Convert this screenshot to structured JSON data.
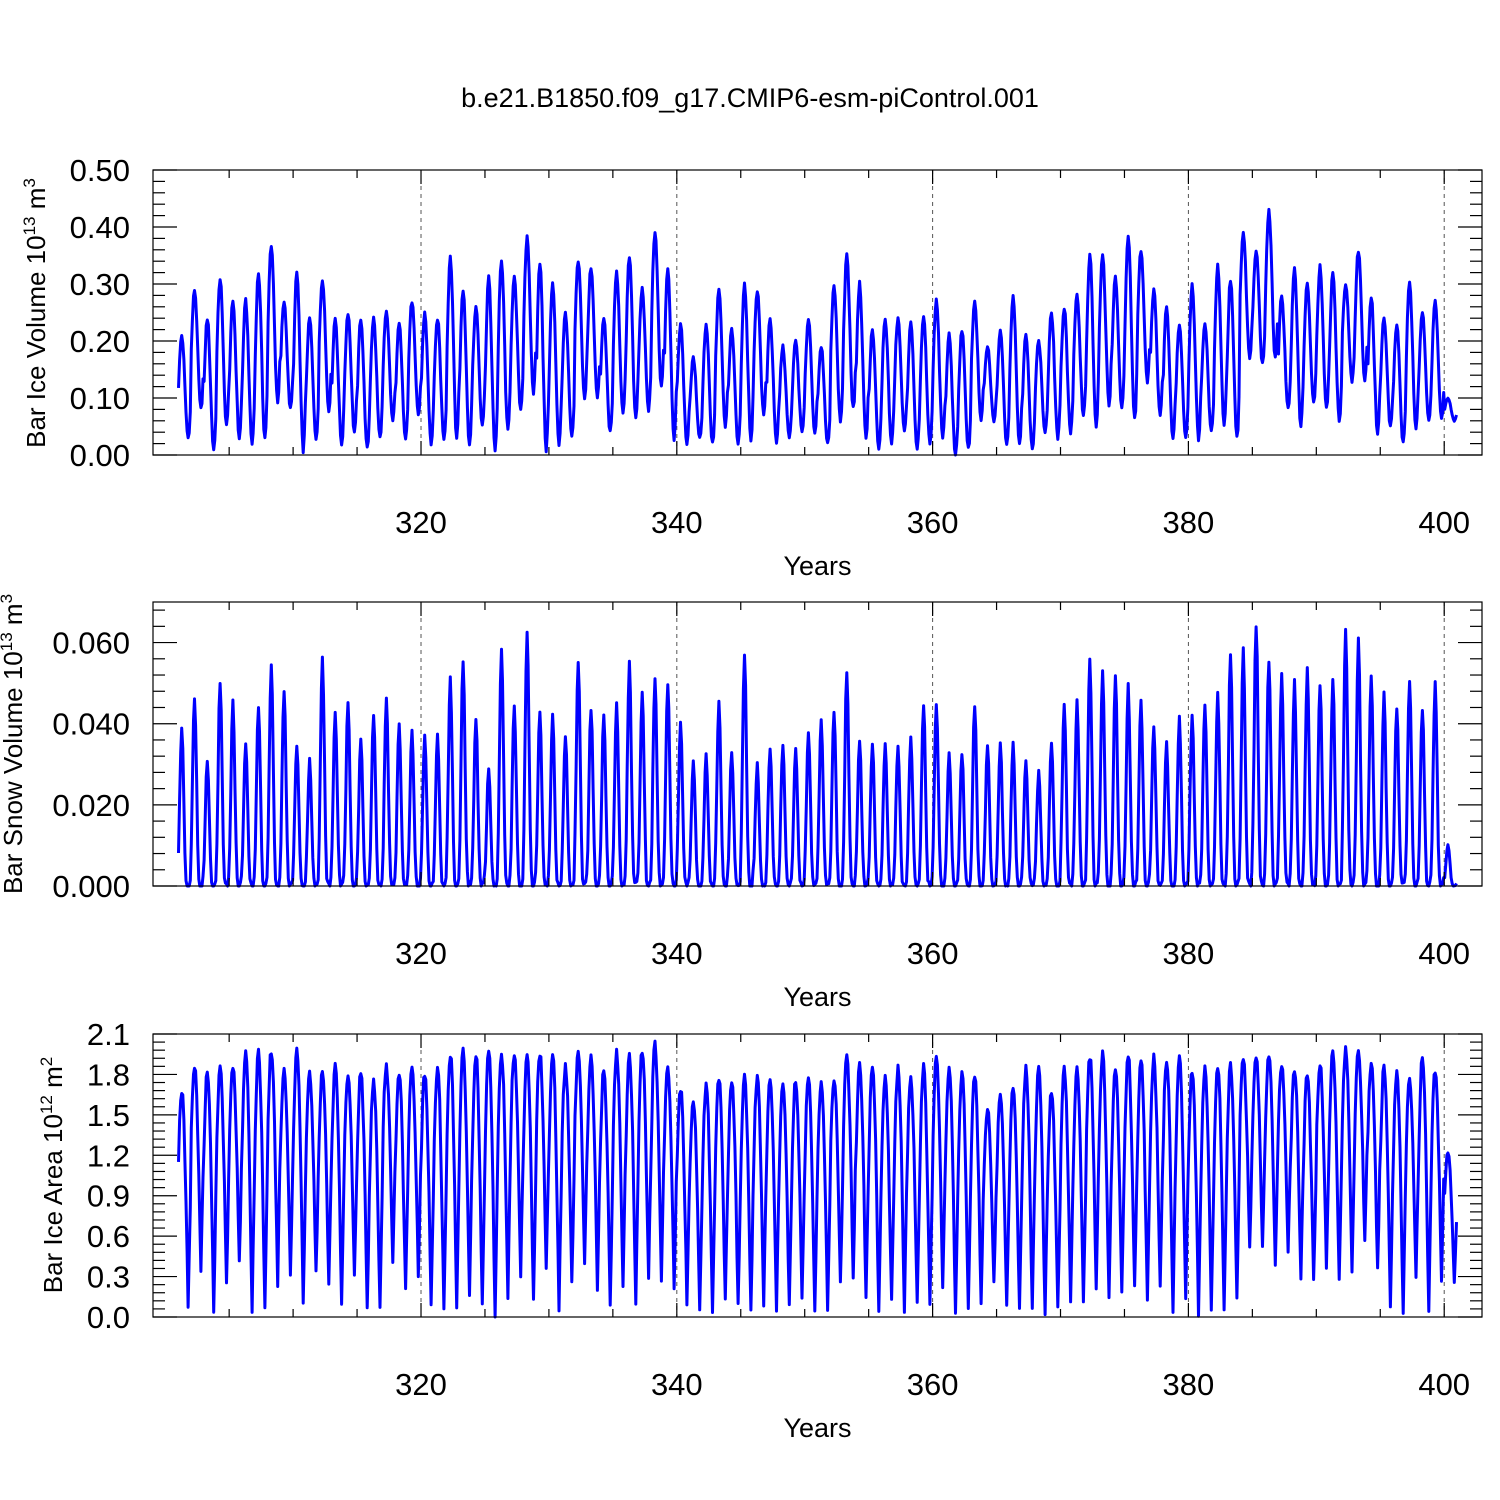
{
  "figure": {
    "title": "b.e21.B1850.f09_g17.CMIP6-esm-piControl.001"
  },
  "chart_data": [
    {
      "type": "line",
      "id": "ice-volume",
      "ylabel": {
        "main": "Bar Ice Volume 10",
        "exp": "13",
        "unit": " m",
        "unit_exp": "3"
      },
      "xlabel": "Years",
      "xlim": [
        301,
        400
      ],
      "ylim": [
        0.0,
        0.5
      ],
      "xticks": [
        320,
        340,
        360,
        380,
        400
      ],
      "xtick_labels": [
        "320",
        "340",
        "360",
        "380",
        "400"
      ],
      "yticks": [
        0.0,
        0.1,
        0.2,
        0.3,
        0.4,
        0.5
      ],
      "ytick_labels": [
        "0.00",
        "0.10",
        "0.20",
        "0.30",
        "0.40",
        "0.50"
      ],
      "grid_x": true,
      "color": "#0000ff",
      "series": [
        {
          "name": "Bar Ice Volume",
          "annual_max": [
            0.21,
            0.29,
            0.24,
            0.31,
            0.27,
            0.27,
            0.32,
            0.37,
            0.27,
            0.32,
            0.24,
            0.31,
            0.24,
            0.25,
            0.24,
            0.24,
            0.25,
            0.23,
            0.27,
            0.25,
            0.24,
            0.35,
            0.29,
            0.26,
            0.31,
            0.34,
            0.31,
            0.38,
            0.34,
            0.3,
            0.25,
            0.34,
            0.33,
            0.24,
            0.32,
            0.35,
            0.29,
            0.39,
            0.33,
            0.23,
            0.17,
            0.23,
            0.29,
            0.22,
            0.3,
            0.29,
            0.24,
            0.19,
            0.2,
            0.24,
            0.19,
            0.3,
            0.35,
            0.3,
            0.22,
            0.24,
            0.24,
            0.23,
            0.24,
            0.27,
            0.21,
            0.22,
            0.27,
            0.19,
            0.22,
            0.28,
            0.21,
            0.2,
            0.25,
            0.26,
            0.28,
            0.35,
            0.35,
            0.31,
            0.39,
            0.36,
            0.29,
            0.26,
            0.23,
            0.3,
            0.23,
            0.33,
            0.31,
            0.39,
            0.36,
            0.43,
            0.28,
            0.33,
            0.3,
            0.33,
            0.32,
            0.3,
            0.36,
            0.28,
            0.24,
            0.23,
            0.3,
            0.25,
            0.27,
            0.1
          ],
          "annual_min": [
            0.03,
            0.08,
            0.01,
            0.05,
            0.03,
            0.02,
            0.03,
            0.09,
            0.08,
            0.01,
            0.03,
            0.08,
            0.02,
            0.04,
            0.01,
            0.03,
            0.06,
            0.03,
            0.07,
            0.02,
            0.03,
            0.03,
            0.02,
            0.05,
            0.01,
            0.04,
            0.08,
            0.11,
            0.01,
            0.02,
            0.03,
            0.1,
            0.1,
            0.04,
            0.07,
            0.06,
            0.08,
            0.12,
            0.03,
            0.02,
            0.03,
            0.02,
            0.05,
            0.02,
            0.03,
            0.07,
            0.02,
            0.03,
            0.04,
            0.04,
            0.02,
            0.06,
            0.08,
            0.03,
            0.01,
            0.02,
            0.04,
            0.01,
            0.02,
            0.03,
            0.0,
            0.01,
            0.06,
            0.06,
            0.02,
            0.02,
            0.01,
            0.04,
            0.03,
            0.04,
            0.07,
            0.05,
            0.09,
            0.08,
            0.06,
            0.13,
            0.07,
            0.03,
            0.03,
            0.03,
            0.04,
            0.05,
            0.03,
            0.17,
            0.16,
            0.17,
            0.08,
            0.05,
            0.09,
            0.08,
            0.06,
            0.13,
            0.13,
            0.04,
            0.05,
            0.02,
            0.05,
            0.06,
            0.06,
            0.06
          ]
        }
      ]
    },
    {
      "type": "line",
      "id": "snow-volume",
      "ylabel": {
        "main": "Bar Snow Volume 10",
        "exp": "13",
        "unit": " m",
        "unit_exp": "3"
      },
      "xlabel": "Years",
      "xlim": [
        301,
        400
      ],
      "ylim": [
        0.0,
        0.07
      ],
      "xticks": [
        320,
        340,
        360,
        380,
        400
      ],
      "xtick_labels": [
        "320",
        "340",
        "360",
        "380",
        "400"
      ],
      "yticks": [
        0.0,
        0.02,
        0.04,
        0.06
      ],
      "ytick_labels": [
        "0.000",
        "0.020",
        "0.040",
        "0.060"
      ],
      "grid_x": true,
      "color": "#0000ff",
      "series": [
        {
          "name": "Bar Snow Volume",
          "annual_max": [
            0.039,
            0.047,
            0.031,
            0.05,
            0.045,
            0.035,
            0.044,
            0.054,
            0.048,
            0.035,
            0.031,
            0.056,
            0.043,
            0.046,
            0.036,
            0.042,
            0.046,
            0.04,
            0.038,
            0.037,
            0.037,
            0.051,
            0.056,
            0.041,
            0.029,
            0.058,
            0.045,
            0.062,
            0.043,
            0.042,
            0.037,
            0.056,
            0.044,
            0.042,
            0.045,
            0.055,
            0.048,
            0.051,
            0.05,
            0.04,
            0.031,
            0.032,
            0.045,
            0.033,
            0.057,
            0.03,
            0.034,
            0.035,
            0.034,
            0.038,
            0.041,
            0.043,
            0.053,
            0.036,
            0.035,
            0.035,
            0.035,
            0.037,
            0.045,
            0.045,
            0.033,
            0.033,
            0.045,
            0.035,
            0.035,
            0.035,
            0.031,
            0.028,
            0.035,
            0.045,
            0.046,
            0.055,
            0.053,
            0.052,
            0.049,
            0.045,
            0.04,
            0.035,
            0.041,
            0.042,
            0.045,
            0.047,
            0.057,
            0.058,
            0.065,
            0.056,
            0.052,
            0.05,
            0.053,
            0.05,
            0.051,
            0.062,
            0.06,
            0.052,
            0.047,
            0.044,
            0.05,
            0.044,
            0.05,
            0.01
          ],
          "annual_min": [
            0.0,
            0.0,
            0.0,
            0.0,
            0.0,
            0.0,
            0.0,
            0.0,
            0.0,
            0.0,
            0.0,
            0.0,
            0.0,
            0.0,
            0.0,
            0.0,
            0.0,
            0.0,
            0.0,
            0.0,
            0.0,
            0.0,
            0.0,
            0.0,
            0.0,
            0.0,
            0.0,
            0.0,
            0.0,
            0.0,
            0.0,
            0.0,
            0.0,
            0.0,
            0.0,
            0.0,
            0.0,
            0.0,
            0.0,
            0.0,
            0.0,
            0.0,
            0.0,
            0.0,
            0.0,
            0.0,
            0.0,
            0.0,
            0.0,
            0.0,
            0.0,
            0.0,
            0.0,
            0.0,
            0.0,
            0.0,
            0.0,
            0.0,
            0.0,
            0.0,
            0.0,
            0.0,
            0.0,
            0.0,
            0.0,
            0.0,
            0.0,
            0.0,
            0.0,
            0.0,
            0.0,
            0.0,
            0.0,
            0.0,
            0.0,
            0.0,
            0.0,
            0.0,
            0.0,
            0.0,
            0.0,
            0.0,
            0.0,
            0.0,
            0.0,
            0.0,
            0.0,
            0.0,
            0.0,
            0.0,
            0.0,
            0.0,
            0.0,
            0.0,
            0.0,
            0.0,
            0.0,
            0.0,
            0.0,
            0.0
          ]
        }
      ]
    },
    {
      "type": "line",
      "id": "ice-area",
      "ylabel": {
        "main": "Bar Ice Area 10",
        "exp": "12",
        "unit": " m",
        "unit_exp": "2"
      },
      "xlabel": "Years",
      "xlim": [
        301,
        400
      ],
      "ylim": [
        0.0,
        2.1
      ],
      "xticks": [
        320,
        340,
        360,
        380,
        400
      ],
      "xtick_labels": [
        "320",
        "340",
        "360",
        "380",
        "400"
      ],
      "yticks": [
        0.0,
        0.3,
        0.6,
        0.9,
        1.2,
        1.5,
        1.8,
        2.1
      ],
      "ytick_labels": [
        "0.0",
        "0.3",
        "0.6",
        "0.9",
        "1.2",
        "1.5",
        "1.8",
        "2.1"
      ],
      "grid_x": true,
      "color": "#0000ff",
      "series": [
        {
          "name": "Bar Ice Area",
          "annual_max": [
            1.68,
            1.86,
            1.82,
            1.84,
            1.86,
            1.96,
            1.96,
            1.98,
            1.82,
            1.98,
            1.81,
            1.84,
            1.85,
            1.8,
            1.84,
            1.76,
            1.86,
            1.82,
            1.85,
            1.82,
            1.86,
            1.96,
            1.96,
            1.95,
            1.97,
            1.96,
            1.97,
            1.97,
            1.96,
            1.97,
            1.86,
            1.96,
            1.93,
            1.84,
            1.96,
            1.93,
            1.98,
            2.02,
            1.85,
            1.7,
            1.62,
            1.72,
            1.76,
            1.76,
            1.78,
            1.78,
            1.76,
            1.74,
            1.76,
            1.8,
            1.74,
            1.78,
            1.94,
            1.86,
            1.86,
            1.78,
            1.84,
            1.78,
            1.86,
            1.92,
            1.86,
            1.82,
            1.8,
            1.54,
            1.65,
            1.7,
            1.84,
            1.84,
            1.68,
            1.84,
            1.84,
            1.94,
            1.94,
            1.84,
            1.94,
            1.92,
            1.92,
            1.92,
            1.94,
            1.84,
            1.86,
            1.86,
            1.86,
            1.92,
            1.94,
            1.96,
            1.88,
            1.85,
            1.8,
            1.88,
            1.98,
            1.98,
            1.96,
            1.88,
            1.86,
            1.82,
            1.76,
            1.92,
            1.84,
            1.22
          ],
          "annual_min": [
            0.1,
            0.36,
            0.07,
            0.24,
            0.4,
            0.06,
            0.07,
            0.26,
            0.34,
            0.08,
            0.32,
            0.24,
            0.08,
            0.3,
            0.05,
            0.06,
            0.38,
            0.18,
            0.32,
            0.08,
            0.04,
            0.1,
            0.16,
            0.06,
            0.02,
            0.16,
            0.32,
            0.1,
            0.34,
            0.06,
            0.24,
            0.4,
            0.22,
            0.08,
            0.24,
            0.1,
            0.3,
            0.24,
            0.22,
            0.1,
            0.08,
            0.06,
            0.14,
            0.1,
            0.06,
            0.1,
            0.06,
            0.08,
            0.12,
            0.04,
            0.08,
            0.24,
            0.3,
            0.16,
            0.06,
            0.1,
            0.04,
            0.08,
            0.06,
            0.2,
            0.0,
            0.04,
            0.1,
            0.26,
            0.1,
            0.06,
            0.04,
            0.02,
            0.06,
            0.1,
            0.08,
            0.22,
            0.14,
            0.18,
            0.2,
            0.1,
            0.2,
            0.06,
            0.1,
            0.04,
            0.06,
            0.08,
            0.16,
            0.5,
            0.5,
            0.36,
            0.46,
            0.3,
            0.26,
            0.38,
            0.26,
            0.36,
            0.56,
            0.34,
            0.1,
            0.04,
            0.3,
            0.06,
            0.26,
            0.26
          ]
        }
      ]
    }
  ]
}
